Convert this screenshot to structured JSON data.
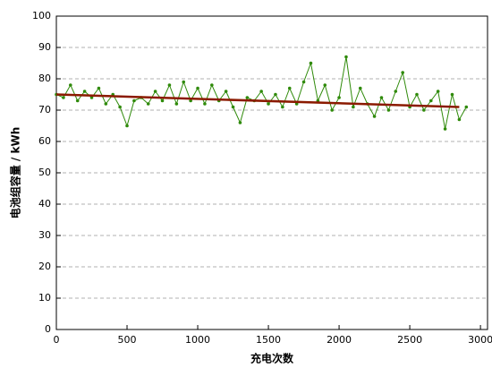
{
  "chart_data": {
    "type": "line",
    "x_label": "充电次数",
    "y_label": "电池组容量 / kWh",
    "xlim": [
      0,
      3050
    ],
    "ylim": [
      0,
      100
    ],
    "xticks": [
      0,
      500,
      1000,
      1500,
      2000,
      2500,
      3000
    ],
    "yticks": [
      0,
      10,
      20,
      30,
      40,
      50,
      60,
      70,
      80,
      90,
      100
    ],
    "grid": true,
    "series": [
      {
        "color": "#2f8a0a",
        "markers": true,
        "x": [
          0,
          50,
          100,
          150,
          200,
          250,
          300,
          350,
          400,
          450,
          500,
          550,
          600,
          650,
          700,
          750,
          800,
          850,
          900,
          950,
          1000,
          1050,
          1100,
          1150,
          1200,
          1250,
          1300,
          1350,
          1400,
          1450,
          1500,
          1550,
          1600,
          1650,
          1700,
          1750,
          1800,
          1850,
          1900,
          1950,
          2000,
          2050,
          2100,
          2150,
          2200,
          2250,
          2300,
          2350,
          2400,
          2450,
          2500,
          2550,
          2600,
          2650,
          2700,
          2750,
          2800,
          2850,
          2900
        ],
        "values": [
          75,
          74,
          78,
          73,
          76,
          74,
          77,
          72,
          75,
          71,
          65,
          73,
          74,
          72,
          76,
          73,
          78,
          72,
          79,
          73,
          77,
          72,
          78,
          73,
          76,
          71,
          66,
          74,
          73,
          76,
          72,
          75,
          71,
          77,
          72,
          79,
          85,
          73,
          78,
          70,
          74,
          87,
          71,
          77,
          72,
          68,
          74,
          70,
          76,
          82,
          71,
          75,
          70,
          73,
          76,
          64,
          75,
          67,
          71
        ]
      },
      {
        "color": "#8b1a00",
        "markers": false,
        "x": [
          0,
          2850
        ],
        "values": [
          75,
          71
        ]
      }
    ]
  }
}
